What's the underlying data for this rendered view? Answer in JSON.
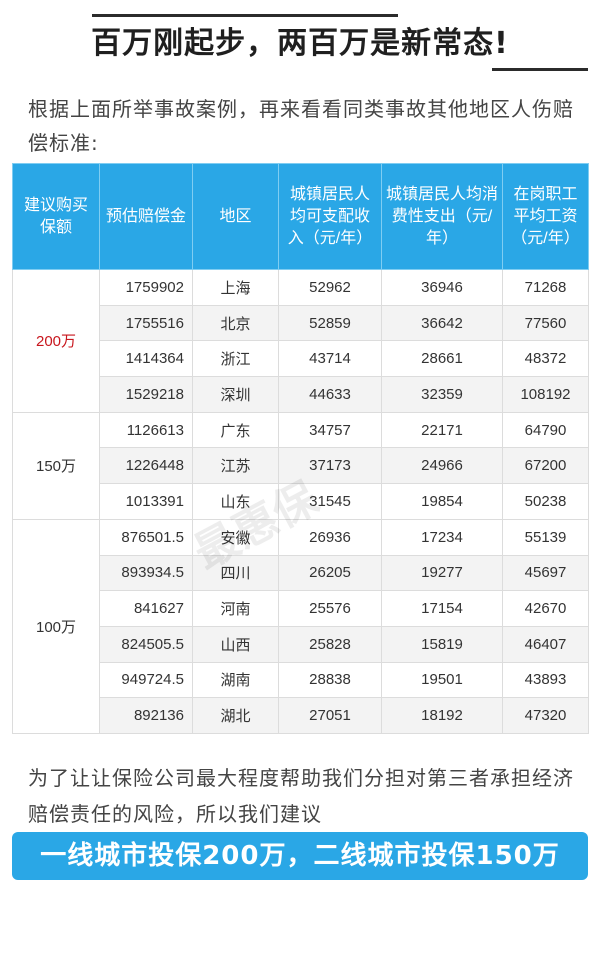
{
  "header": {
    "title": "百万刚起步，两百万是新常态!"
  },
  "intro": {
    "text": "根据上面所举事故案例，再来看看同类事故其他地区人伤赔偿标准:"
  },
  "table": {
    "headers": [
      "建议购买保额",
      "预估赔偿金",
      "地区",
      "城镇居民人均可支配收入（元/年）",
      "城镇居民人均消费性支出（元/年）",
      "在岗职工平均工资（元/年）"
    ],
    "groups": [
      {
        "amount": "200万",
        "rows": [
          [
            "1759902",
            "上海",
            "52962",
            "36946",
            "71268"
          ],
          [
            "1755516",
            "北京",
            "52859",
            "36642",
            "77560"
          ],
          [
            "1414364",
            "浙江",
            "43714",
            "28661",
            "48372"
          ],
          [
            "1529218",
            "深圳",
            "44633",
            "32359",
            "108192"
          ]
        ]
      },
      {
        "amount": "150万",
        "rows": [
          [
            "1126613",
            "广东",
            "34757",
            "22171",
            "64790"
          ],
          [
            "1226448",
            "江苏",
            "37173",
            "24966",
            "67200"
          ],
          [
            "1013391",
            "山东",
            "31545",
            "19854",
            "50238"
          ]
        ]
      },
      {
        "amount": "100万",
        "rows": [
          [
            "876501.5",
            "安徽",
            "26936",
            "17234",
            "55139"
          ],
          [
            "893934.5",
            "四川",
            "26205",
            "19277",
            "45697"
          ],
          [
            "841627",
            "河南",
            "25576",
            "17154",
            "42670"
          ],
          [
            "824505.5",
            "山西",
            "25828",
            "15819",
            "46407"
          ],
          [
            "949724.5",
            "湖南",
            "28838",
            "19501",
            "43893"
          ],
          [
            "892136",
            "湖北",
            "27051",
            "18192",
            "47320"
          ]
        ]
      }
    ]
  },
  "watermark": {
    "text": "最惠保"
  },
  "outro": {
    "text": "为了让让保险公司最大程度帮助我们分担对第三者承担经济赔偿责任的风险，所以我们建议"
  },
  "banner": {
    "text": "一线城市投保200万，二线城市投保150万"
  },
  "colors": {
    "accent": "#2aa7e6",
    "highlight_red": "#c8161d"
  }
}
